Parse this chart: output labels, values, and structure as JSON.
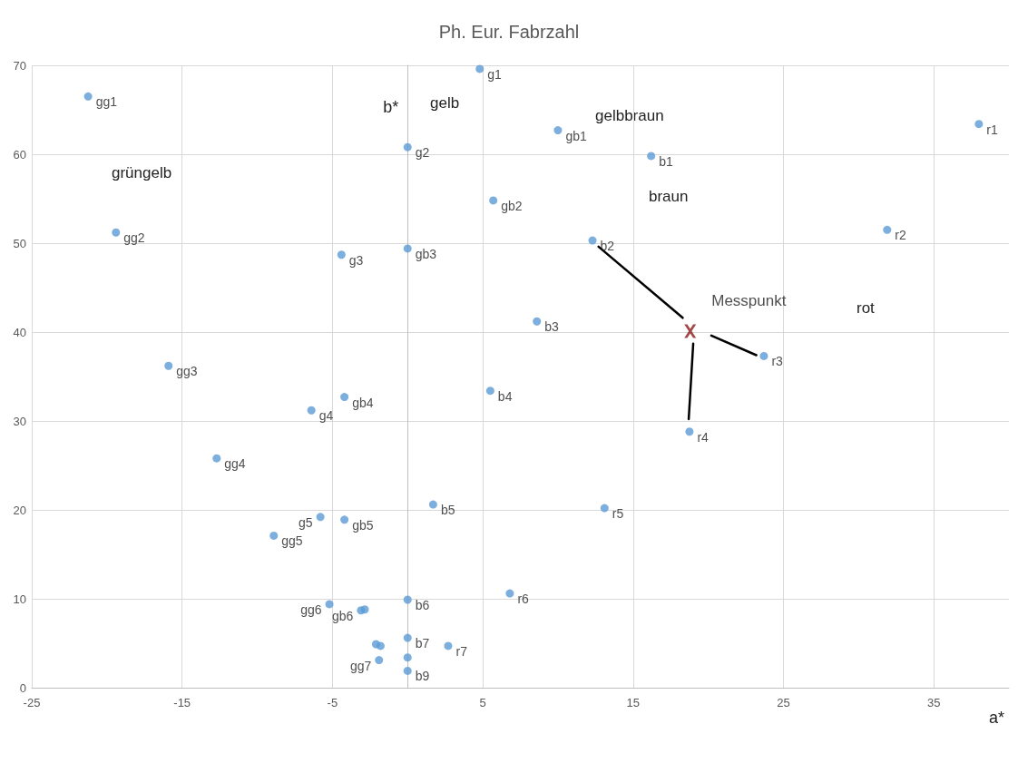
{
  "chart_data": {
    "type": "scatter",
    "title": "Ph. Eur. Fabrzahl",
    "xlabel": "a*",
    "ylabel": "b*",
    "xlim": [
      -25,
      40
    ],
    "xticks": [
      -25,
      -15,
      -5,
      5,
      15,
      25,
      35
    ],
    "ylim": [
      0,
      70
    ],
    "yticks": [
      0,
      10,
      20,
      30,
      40,
      50,
      60,
      70
    ],
    "grid": true,
    "legend": false,
    "marker": "circle",
    "series": [
      {
        "name": "gg1",
        "color": "#5b9bd5",
        "x": [
          -21.25
        ],
        "values": [
          66.5
        ]
      },
      {
        "name": "gg2",
        "color": "#5b9bd5",
        "x": [
          -19.4
        ],
        "values": [
          51.2
        ]
      },
      {
        "name": "gg3",
        "color": "#5b9bd5",
        "x": [
          -15.9
        ],
        "values": [
          36.2
        ]
      },
      {
        "name": "gg4",
        "color": "#5b9bd5",
        "x": [
          -12.7
        ],
        "values": [
          25.8
        ]
      },
      {
        "name": "gg5",
        "color": "#5b9bd5",
        "x": [
          -8.9
        ],
        "values": [
          17.1
        ]
      },
      {
        "name": "gg6",
        "color": "#5b9bd5",
        "x": [
          -5.2
        ],
        "values": [
          9.4
        ]
      },
      {
        "name": "gg7",
        "color": "#5b9bd5",
        "x": [
          -1.9
        ],
        "values": [
          3.1
        ]
      },
      {
        "name": "g1",
        "color": "#5b9bd5",
        "x": [
          4.8
        ],
        "values": [
          69.6
        ]
      },
      {
        "name": "g2",
        "color": "#5b9bd5",
        "x": [
          0
        ],
        "values": [
          60.8
        ]
      },
      {
        "name": "g3",
        "color": "#5b9bd5",
        "x": [
          -4.4
        ],
        "values": [
          48.7
        ]
      },
      {
        "name": "g4",
        "color": "#5b9bd5",
        "x": [
          -6.4
        ],
        "values": [
          31.2
        ]
      },
      {
        "name": "g5",
        "color": "#5b9bd5",
        "x": [
          -5.8
        ],
        "values": [
          19.2
        ]
      },
      {
        "name": "gb1",
        "color": "#5b9bd5",
        "x": [
          10.0
        ],
        "values": [
          62.7
        ]
      },
      {
        "name": "gb2",
        "color": "#5b9bd5",
        "x": [
          5.7
        ],
        "values": [
          54.8
        ]
      },
      {
        "name": "gb3",
        "color": "#5b9bd5",
        "x": [
          0
        ],
        "values": [
          49.4
        ]
      },
      {
        "name": "gb4",
        "color": "#5b9bd5",
        "x": [
          -4.2
        ],
        "values": [
          32.7
        ]
      },
      {
        "name": "gb5",
        "color": "#5b9bd5",
        "x": [
          -4.2
        ],
        "values": [
          18.9
        ]
      },
      {
        "name": "gb6",
        "color": "#5b9bd5",
        "x": [
          -3.1,
          -2.85
        ],
        "values": [
          8.7,
          8.8
        ]
      },
      {
        "name": "b1",
        "color": "#5b9bd5",
        "x": [
          16.2
        ],
        "values": [
          59.8
        ]
      },
      {
        "name": "b2",
        "color": "#5b9bd5",
        "x": [
          12.3
        ],
        "values": [
          50.3
        ]
      },
      {
        "name": "b3",
        "color": "#5b9bd5",
        "x": [
          8.6
        ],
        "values": [
          41.2
        ]
      },
      {
        "name": "b4",
        "color": "#5b9bd5",
        "x": [
          5.5
        ],
        "values": [
          33.4
        ]
      },
      {
        "name": "b5",
        "color": "#5b9bd5",
        "x": [
          1.7
        ],
        "values": [
          20.6
        ]
      },
      {
        "name": "b6",
        "color": "#5b9bd5",
        "x": [
          0
        ],
        "values": [
          9.9
        ]
      },
      {
        "name": "b7",
        "color": "#5b9bd5",
        "x": [
          0
        ],
        "values": [
          5.6
        ]
      },
      {
        "name": "b9",
        "color": "#5b9bd5",
        "x": [
          0
        ],
        "values": [
          1.9
        ]
      },
      {
        "name": "r1",
        "color": "#5b9bd5",
        "x": [
          38.0
        ],
        "values": [
          63.4
        ]
      },
      {
        "name": "r2",
        "color": "#5b9bd5",
        "x": [
          31.9
        ],
        "values": [
          51.5
        ]
      },
      {
        "name": "r3",
        "color": "#5b9bd5",
        "x": [
          23.7
        ],
        "values": [
          37.3
        ]
      },
      {
        "name": "r4",
        "color": "#5b9bd5",
        "x": [
          18.75
        ],
        "values": [
          28.8
        ]
      },
      {
        "name": "r5",
        "color": "#5b9bd5",
        "x": [
          13.1
        ],
        "values": [
          20.2
        ]
      },
      {
        "name": "r6",
        "color": "#5b9bd5",
        "x": [
          6.8
        ],
        "values": [
          10.6
        ]
      },
      {
        "name": "r7",
        "color": "#5b9bd5",
        "x": [
          2.7
        ],
        "values": [
          4.7
        ]
      },
      {
        "color": "#5b9bd5",
        "x": [
          0,
          -2.1,
          -1.8
        ],
        "values": [
          3.4,
          4.9,
          4.7
        ]
      },
      {
        "type": "line",
        "color": "#000000",
        "marker": "none",
        "line_style": "solid",
        "x": [
          18.3,
          12.7
        ],
        "values": [
          41.6,
          49.6
        ]
      },
      {
        "type": "line",
        "color": "#000000",
        "marker": "none",
        "line_style": "solid",
        "x": [
          20.2,
          23.2
        ],
        "values": [
          39.6,
          37.4
        ]
      },
      {
        "type": "line",
        "color": "#000000",
        "marker": "none",
        "line_style": "solid",
        "x": [
          19.0,
          18.7
        ],
        "values": [
          38.7,
          30.2
        ]
      },
      {
        "name": "Messpunkt",
        "color": "#8b1a1a",
        "marker": "cross",
        "x": [
          18.8
        ],
        "values": [
          40.1
        ]
      }
    ],
    "annotations": [
      "grüngelb",
      "gelb",
      "gelbbraun",
      "braun",
      "rot"
    ]
  }
}
